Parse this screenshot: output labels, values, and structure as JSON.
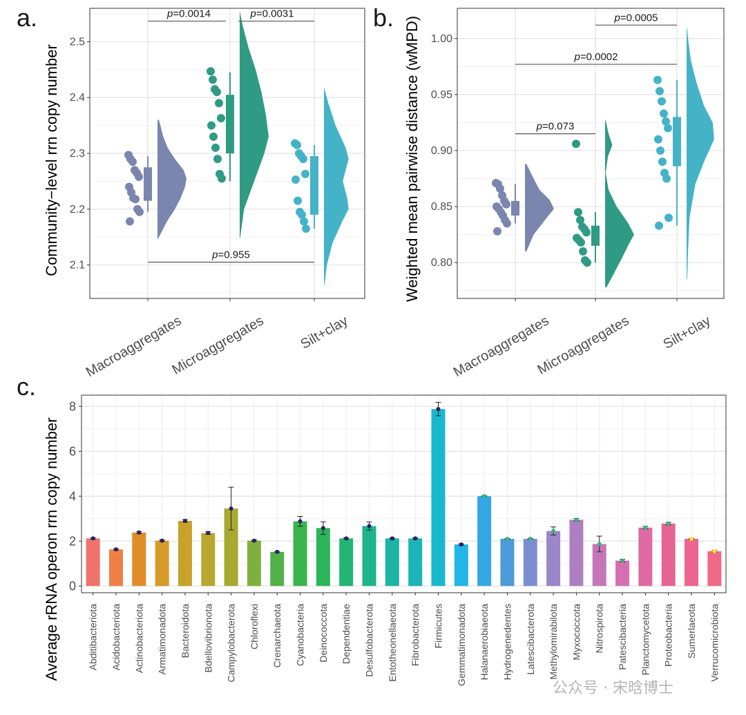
{
  "panels": {
    "a": "a.",
    "b": "b.",
    "c": "c."
  },
  "watermark": "公众号 · 宋晗博士",
  "chart_data": [
    {
      "panel": "a",
      "type": "raincloud",
      "ylabel": "Community−level rrn copy number",
      "ylim": [
        2.04,
        2.56
      ],
      "yticks": [
        2.1,
        2.2,
        2.3,
        2.4,
        2.5
      ],
      "grid": true,
      "categories": [
        "Macroaggregates",
        "Microaggregates",
        "Silt+clay"
      ],
      "colors": [
        "#7a86ae",
        "#2f9b84",
        "#45b3c7"
      ],
      "groups": [
        {
          "name": "Macroaggregates",
          "points": [
            2.297,
            2.29,
            2.285,
            2.27,
            2.265,
            2.258,
            2.24,
            2.23,
            2.22,
            2.218,
            2.2,
            2.195,
            2.178
          ],
          "box": {
            "q1": 2.215,
            "median": 2.245,
            "q3": 2.275,
            "min": 2.195,
            "max": 2.295
          },
          "violin": [
            [
              2.15,
              0.05
            ],
            [
              2.18,
              0.35
            ],
            [
              2.2,
              0.6
            ],
            [
              2.22,
              0.8
            ],
            [
              2.24,
              0.95
            ],
            [
              2.255,
              1.0
            ],
            [
              2.27,
              0.9
            ],
            [
              2.29,
              0.6
            ],
            [
              2.31,
              0.35
            ],
            [
              2.33,
              0.2
            ],
            [
              2.36,
              0.05
            ]
          ],
          "violin_range": [
            2.145,
            2.36
          ]
        },
        {
          "name": "Microaggregates",
          "points": [
            2.447,
            2.432,
            2.415,
            2.41,
            2.39,
            2.363,
            2.35,
            2.33,
            2.31,
            2.29,
            2.263,
            2.255
          ],
          "box": {
            "q1": 2.3,
            "median": 2.33,
            "q3": 2.405,
            "min": 2.25,
            "max": 2.445
          },
          "violin": [
            [
              2.15,
              0.02
            ],
            [
              2.2,
              0.15
            ],
            [
              2.25,
              0.5
            ],
            [
              2.3,
              0.85
            ],
            [
              2.33,
              1.0
            ],
            [
              2.37,
              0.9
            ],
            [
              2.41,
              0.75
            ],
            [
              2.45,
              0.55
            ],
            [
              2.49,
              0.3
            ],
            [
              2.53,
              0.1
            ],
            [
              2.55,
              0.02
            ]
          ],
          "violin_range": [
            2.148,
            2.555
          ]
        },
        {
          "name": "Silt+clay",
          "points": [
            2.318,
            2.315,
            2.3,
            2.295,
            2.29,
            2.263,
            2.253,
            2.215,
            2.195,
            2.19,
            2.178,
            2.165
          ],
          "box": {
            "q1": 2.19,
            "median": 2.25,
            "q3": 2.295,
            "min": 2.165,
            "max": 2.315
          },
          "violin": [
            [
              2.065,
              0.02
            ],
            [
              2.1,
              0.1
            ],
            [
              2.14,
              0.3
            ],
            [
              2.18,
              0.65
            ],
            [
              2.2,
              0.85
            ],
            [
              2.22,
              0.8
            ],
            [
              2.25,
              0.65
            ],
            [
              2.29,
              0.85
            ],
            [
              2.31,
              0.75
            ],
            [
              2.35,
              0.4
            ],
            [
              2.39,
              0.15
            ],
            [
              2.415,
              0.02
            ]
          ],
          "violin_range": [
            2.063,
            2.418
          ]
        }
      ],
      "comparisons": [
        {
          "from": 0,
          "to": 1,
          "y": 2.537,
          "label": "=0.0014"
        },
        {
          "from": 1,
          "to": 2,
          "y": 2.537,
          "label": "=0.0031"
        },
        {
          "from": 0,
          "to": 2,
          "y": 2.105,
          "label": "=0.955"
        }
      ]
    },
    {
      "panel": "b",
      "type": "raincloud",
      "ylabel": "Weighted mean pairwise distance (wMPD)",
      "ylim": [
        0.768,
        1.027
      ],
      "yticks": [
        0.8,
        0.85,
        0.9,
        0.95,
        1.0
      ],
      "ytick_labels": [
        "0.80",
        "0.85",
        "0.90",
        "0.95",
        "1.00"
      ],
      "grid": true,
      "categories": [
        "Macroaggregates",
        "Microaggregates",
        "Silt+clay"
      ],
      "colors": [
        "#7a86ae",
        "#2f9b84",
        "#45b3c7"
      ],
      "groups": [
        {
          "name": "Macroaggregates",
          "points": [
            0.871,
            0.87,
            0.866,
            0.86,
            0.855,
            0.852,
            0.85,
            0.848,
            0.845,
            0.842,
            0.838,
            0.835,
            0.828
          ],
          "box": {
            "q1": 0.842,
            "median": 0.848,
            "q3": 0.855,
            "min": 0.835,
            "max": 0.87
          },
          "violin": [
            [
              0.81,
              0.05
            ],
            [
              0.825,
              0.3
            ],
            [
              0.84,
              0.75
            ],
            [
              0.848,
              1.0
            ],
            [
              0.856,
              0.85
            ],
            [
              0.865,
              0.5
            ],
            [
              0.875,
              0.3
            ],
            [
              0.888,
              0.05
            ]
          ],
          "violin_range": [
            0.81,
            0.888
          ]
        },
        {
          "name": "Microaggregates",
          "points": [
            0.906,
            0.845,
            0.838,
            0.832,
            0.83,
            0.827,
            0.822,
            0.82,
            0.818,
            0.81,
            0.802,
            0.8
          ],
          "box": {
            "q1": 0.815,
            "median": 0.822,
            "q3": 0.833,
            "min": 0.8,
            "max": 0.845
          },
          "violin": [
            [
              0.778,
              0.05
            ],
            [
              0.79,
              0.3
            ],
            [
              0.805,
              0.6
            ],
            [
              0.818,
              0.85
            ],
            [
              0.825,
              1.0
            ],
            [
              0.835,
              0.8
            ],
            [
              0.85,
              0.4
            ],
            [
              0.865,
              0.12
            ],
            [
              0.88,
              0.02
            ],
            [
              0.895,
              0.1
            ],
            [
              0.905,
              0.25
            ],
            [
              0.915,
              0.12
            ],
            [
              0.927,
              0.02
            ]
          ],
          "violin_range": [
            0.778,
            0.927
          ]
        },
        {
          "name": "Silt+clay",
          "points": [
            0.963,
            0.953,
            0.944,
            0.933,
            0.926,
            0.92,
            0.91,
            0.9,
            0.89,
            0.88,
            0.875,
            0.84,
            0.833
          ],
          "box": {
            "q1": 0.886,
            "median": 0.905,
            "q3": 0.93,
            "min": 0.833,
            "max": 0.963
          },
          "violin": [
            [
              0.785,
              0.02
            ],
            [
              0.81,
              0.05
            ],
            [
              0.84,
              0.1
            ],
            [
              0.87,
              0.3
            ],
            [
              0.89,
              0.6
            ],
            [
              0.91,
              0.95
            ],
            [
              0.925,
              0.9
            ],
            [
              0.94,
              0.6
            ],
            [
              0.96,
              0.35
            ],
            [
              0.98,
              0.15
            ],
            [
              1.0,
              0.05
            ],
            [
              1.01,
              0.01
            ]
          ],
          "violin_range": [
            0.785,
            1.01
          ]
        }
      ],
      "comparisons": [
        {
          "from": 1,
          "to": 2,
          "y": 1.012,
          "label": "=0.0005"
        },
        {
          "from": 0,
          "to": 2,
          "y": 0.977,
          "label": "=0.0002"
        },
        {
          "from": 0,
          "to": 1,
          "y": 0.915,
          "label": "=0.073"
        }
      ]
    },
    {
      "panel": "c",
      "type": "bar",
      "ylabel": "Average rRNA operon rrn copy number",
      "ylim": [
        -0.3,
        8.5
      ],
      "yticks": [
        0,
        2,
        4,
        6,
        8
      ],
      "grid": true,
      "categories": [
        "Abditibacteriota",
        "Acidobacteriota",
        "Actinobacteriota",
        "Armatimonadota",
        "Bacteroidota",
        "Bdellovibrionota",
        "Campylobacterota",
        "Chloroflexi",
        "Crenarchaeota",
        "Cyanobacteria",
        "Deinococcota",
        "Dependentiae",
        "Desulfobacterota",
        "Entotheonellaeota",
        "Fibrobacterota",
        "Firmicutes",
        "Gemmatimonadota",
        "Halanaerobiaeota",
        "Hydrogenedentes",
        "Latescibacterota",
        "Methylomirabilota",
        "Myxococcota",
        "Nitrospirota",
        "Patescibacteria",
        "Planctomycetota",
        "Proteobacteria",
        "Sumerlaeota",
        "Verrucomicrobiota"
      ],
      "values": [
        2.12,
        1.63,
        2.38,
        2.02,
        2.9,
        2.36,
        3.45,
        2.02,
        1.52,
        2.88,
        2.58,
        2.12,
        2.67,
        2.12,
        2.12,
        7.88,
        1.85,
        4.0,
        2.1,
        2.1,
        2.45,
        2.95,
        1.87,
        1.13,
        2.6,
        2.78,
        2.1,
        1.55
      ],
      "errors": [
        0.03,
        0.03,
        0.05,
        0.03,
        0.06,
        0.06,
        0.95,
        0.03,
        0.03,
        0.22,
        0.28,
        0.03,
        0.18,
        0.03,
        0.03,
        0.3,
        0.03,
        0.02,
        0.02,
        0.02,
        0.18,
        0.06,
        0.35,
        0.06,
        0.06,
        0.06,
        0.02,
        0.04
      ],
      "point_colors": [
        "#2b1f6b",
        "#2b1f6b",
        "#2b1f6b",
        "#2b1f6b",
        "#2b1f6b",
        "#2b1f6b",
        "#2b1f6b",
        "#2b1f6b",
        "#2b1f6b",
        "#2b1f6b",
        "#2b1f6b",
        "#2b1f6b",
        "#2b1f6b",
        "#2b1f6b",
        "#2b1f6b",
        "#2b1f6b",
        "#2b1f6b",
        "#35b779",
        "#35b779",
        "#35b779",
        "#35b779",
        "#35b779",
        "#35b779",
        "#35b779",
        "#35b779",
        "#35b779",
        "#fde725",
        "#fde725"
      ],
      "colors": [
        "#f0736b",
        "#f07f45",
        "#e08c2a",
        "#d69a26",
        "#c9a22a",
        "#b9a730",
        "#a7aa2e",
        "#7fb03e",
        "#52b149",
        "#3ab44c",
        "#2bb55a",
        "#23b574",
        "#1eb48c",
        "#1cb4a4",
        "#1cb4b8",
        "#1ab8cf",
        "#21b6e5",
        "#34a7e5",
        "#4d9ad9",
        "#7b8fd0",
        "#9a86c8",
        "#ad7fc0",
        "#c676b8",
        "#d66fb1",
        "#df6aa4",
        "#e66495",
        "#ed6490",
        "#f06a88"
      ]
    }
  ]
}
